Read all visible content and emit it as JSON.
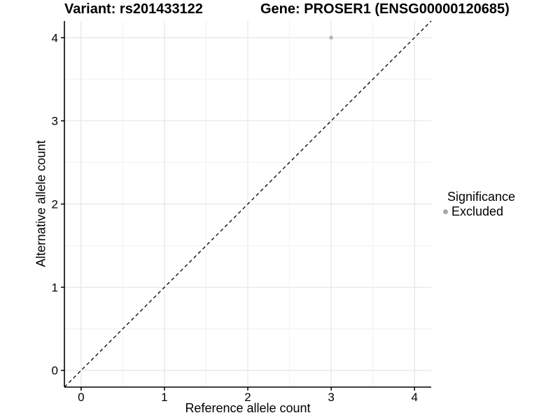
{
  "header": {
    "variant_title": "Variant: rs201433122",
    "gene_title": "Gene: PROSER1 (ENSG00000120685)"
  },
  "chart_data": {
    "type": "scatter",
    "title": "",
    "xlabel": "Reference allele count",
    "ylabel": "Alternative allele count",
    "xlim": [
      -0.2,
      4.2
    ],
    "ylim": [
      -0.2,
      4.2
    ],
    "x_ticks": [
      0,
      1,
      2,
      3,
      4
    ],
    "y_ticks": [
      0,
      1,
      2,
      3,
      4
    ],
    "grid": {
      "major": true,
      "minor": true
    },
    "series": [
      {
        "name": "Excluded",
        "color": "#b5b5b5",
        "points": [
          {
            "x": 3,
            "y": 4
          }
        ]
      }
    ],
    "reference_line": {
      "kind": "identity",
      "dashed": true,
      "color": "#000000",
      "x1": -0.2,
      "y1": -0.2,
      "x2": 4.2,
      "y2": 4.2
    },
    "legend": {
      "title": "Significance",
      "position": "right",
      "entries": [
        {
          "label": "Excluded",
          "color": "#a8a8a8"
        }
      ]
    },
    "colors": {
      "background": "#ffffff",
      "grid_major": "#e3e3e3",
      "grid_minor": "#f1f1f1",
      "axis_line": "#000000",
      "tick_text": "#000000"
    }
  }
}
